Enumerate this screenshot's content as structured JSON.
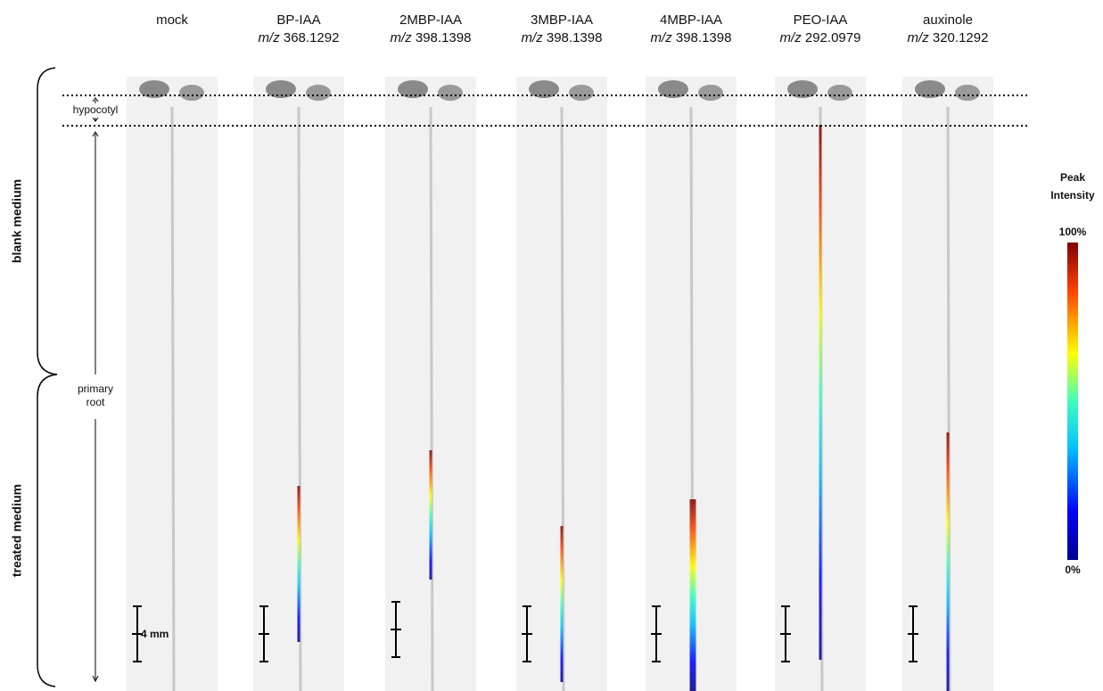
{
  "columns": [
    {
      "name": "mock"
    },
    {
      "name": "BP-IAA",
      "mz": {
        "prefix": "m/z",
        "value": "368.1292"
      }
    },
    {
      "name": "2MBP-IAA",
      "mz": {
        "prefix": "m/z",
        "value": "398.1398"
      }
    },
    {
      "name": "3MBP-IAA",
      "mz": {
        "prefix": "m/z",
        "value": "398.1398"
      }
    },
    {
      "name": "4MBP-IAA",
      "mz": {
        "prefix": "m/z",
        "value": "398.1398"
      }
    },
    {
      "name": "PEO-IAA",
      "mz": {
        "prefix": "m/z",
        "value": "292.0979"
      }
    },
    {
      "name": "auxinole",
      "mz": {
        "prefix": "m/z",
        "value": "320.1292"
      }
    }
  ],
  "regions": {
    "blank": "blank medium",
    "treated": "treated medium"
  },
  "organs": {
    "hypocotyl": "hypocotyl",
    "root_line1": "primary",
    "root_line2": "root"
  },
  "scale_bar": "4 mm",
  "colorbar": {
    "title_line1": "Peak",
    "title_line2": "Intensity",
    "max": "100%",
    "min": "0%"
  }
}
